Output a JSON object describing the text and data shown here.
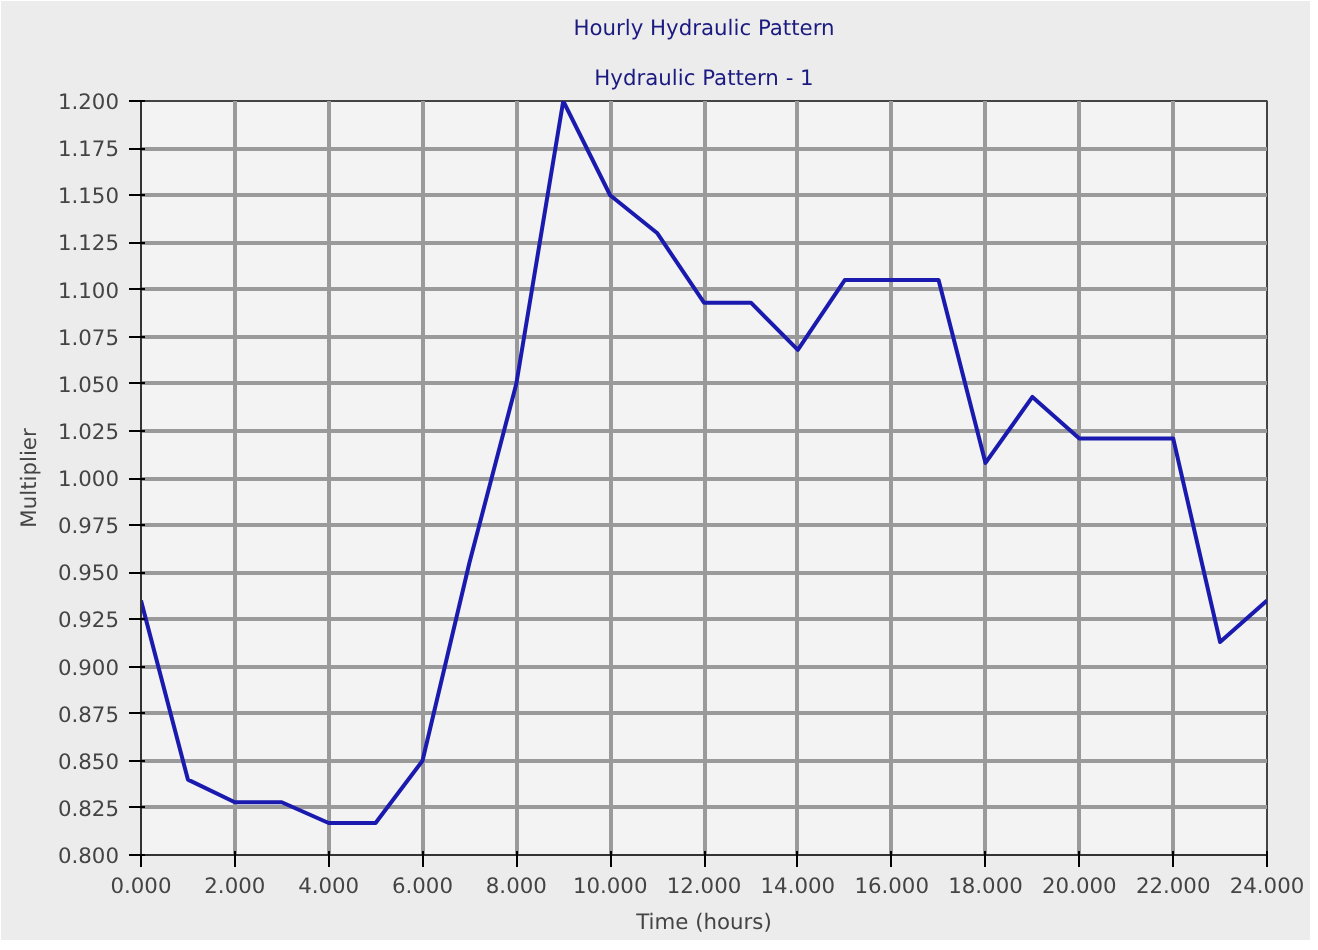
{
  "chart_data": {
    "type": "line",
    "title": "Hourly Hydraulic Pattern",
    "subtitle": "Hydraulic Pattern - 1",
    "xlabel": "Time (hours)",
    "ylabel": "Multiplier",
    "x": [
      0,
      1,
      2,
      3,
      4,
      5,
      6,
      7,
      8,
      9,
      10,
      11,
      12,
      13,
      14,
      15,
      16,
      17,
      18,
      19,
      20,
      21,
      22,
      23,
      24
    ],
    "series": [
      {
        "color": "#1a1aae",
        "values": [
          0.935,
          0.84,
          0.828,
          0.828,
          0.817,
          0.817,
          0.85,
          0.955,
          1.05,
          1.2,
          1.15,
          1.13,
          1.093,
          1.093,
          1.068,
          1.105,
          1.105,
          1.105,
          1.008,
          1.043,
          1.021,
          1.021,
          1.021,
          0.913,
          0.935
        ]
      }
    ],
    "xlim": [
      0,
      24
    ],
    "ylim": [
      0.8,
      1.2
    ],
    "xticks": [
      {
        "value": 0,
        "label": "0.000"
      },
      {
        "value": 2,
        "label": "2.000"
      },
      {
        "value": 4,
        "label": "4.000"
      },
      {
        "value": 6,
        "label": "6.000"
      },
      {
        "value": 8,
        "label": "8.000"
      },
      {
        "value": 10,
        "label": "10.000"
      },
      {
        "value": 12,
        "label": "12.000"
      },
      {
        "value": 14,
        "label": "14.000"
      },
      {
        "value": 16,
        "label": "16.000"
      },
      {
        "value": 18,
        "label": "18.000"
      },
      {
        "value": 20,
        "label": "20.000"
      },
      {
        "value": 22,
        "label": "22.000"
      },
      {
        "value": 24,
        "label": "24.000"
      }
    ],
    "yticks": [
      {
        "value": 0.8,
        "label": "0.800"
      },
      {
        "value": 0.825,
        "label": "0.825"
      },
      {
        "value": 0.85,
        "label": "0.850"
      },
      {
        "value": 0.875,
        "label": "0.875"
      },
      {
        "value": 0.9,
        "label": "0.900"
      },
      {
        "value": 0.925,
        "label": "0.925"
      },
      {
        "value": 0.95,
        "label": "0.950"
      },
      {
        "value": 0.975,
        "label": "0.975"
      },
      {
        "value": 1.0,
        "label": "1.000"
      },
      {
        "value": 1.025,
        "label": "1.025"
      },
      {
        "value": 1.05,
        "label": "1.050"
      },
      {
        "value": 1.075,
        "label": "1.075"
      },
      {
        "value": 1.1,
        "label": "1.100"
      },
      {
        "value": 1.125,
        "label": "1.125"
      },
      {
        "value": 1.15,
        "label": "1.150"
      },
      {
        "value": 1.175,
        "label": "1.175"
      },
      {
        "value": 1.2,
        "label": "1.200"
      }
    ],
    "grid": true,
    "marker": "none",
    "line_style": "solid"
  }
}
